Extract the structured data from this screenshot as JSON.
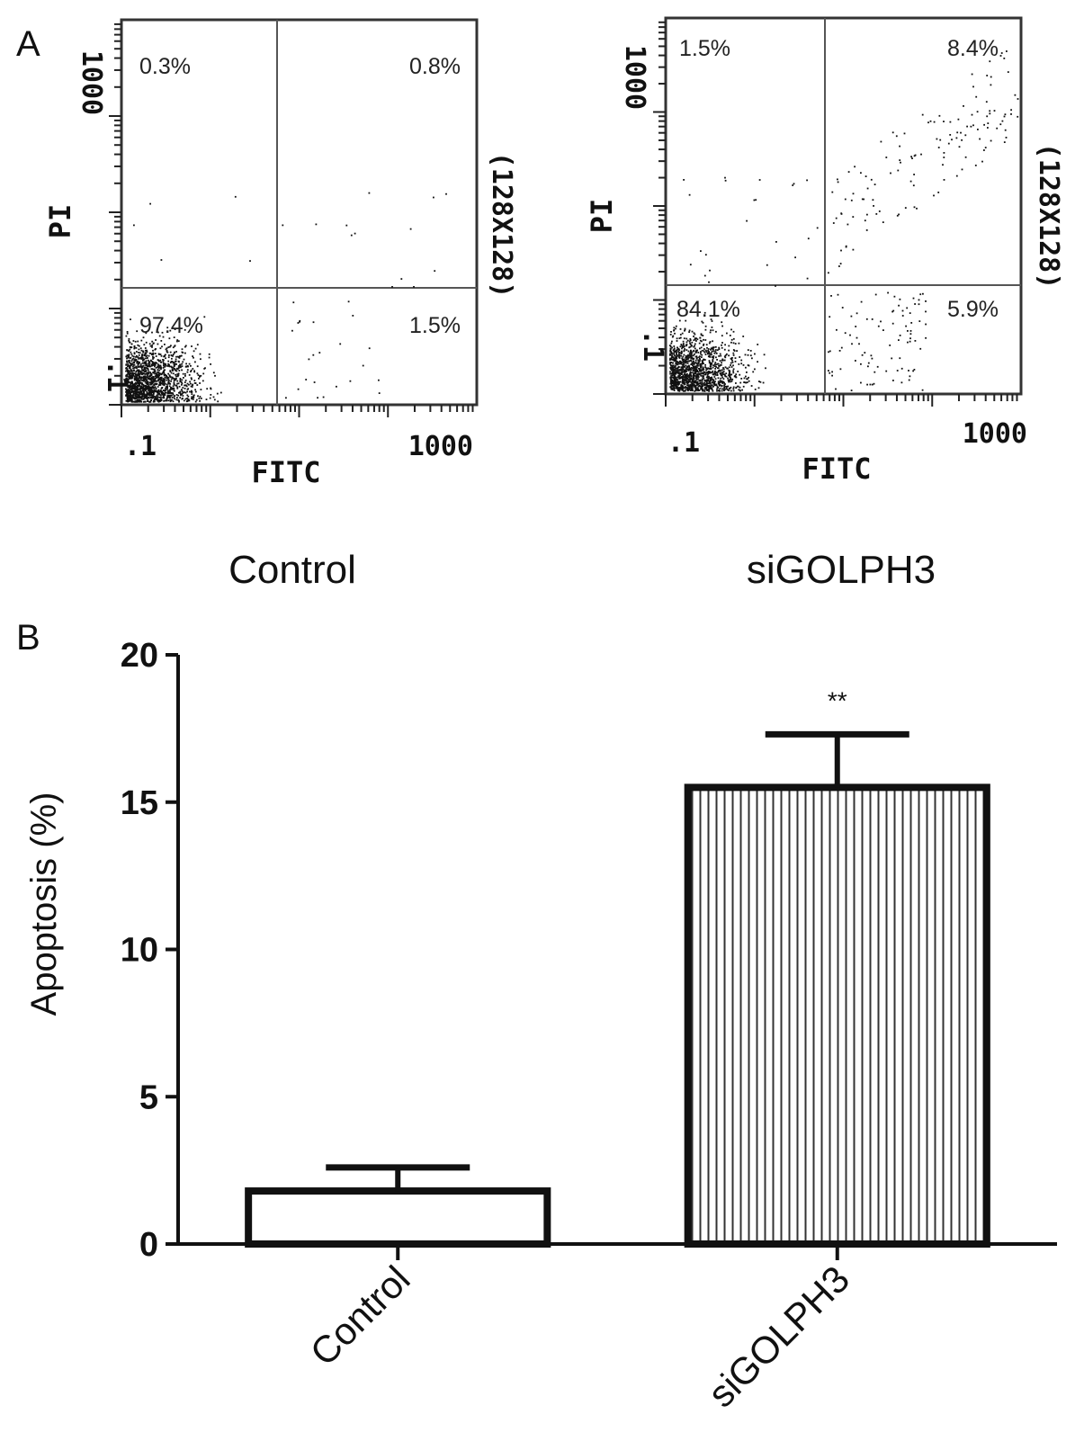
{
  "panel_labels": {
    "a": "A",
    "b": "B"
  },
  "flow_plots": [
    {
      "condition": "Control",
      "x_label": "FITC",
      "y_label": "PI",
      "resolution_label": "(128X128)",
      "x_ticks": [
        ".1",
        "1000"
      ],
      "y_ticks": [
        ".1",
        "1000"
      ],
      "quadrants": {
        "upper_left": "0.3%",
        "upper_right": "0.8%",
        "lower_left": "97.4%",
        "lower_right": "1.5%"
      }
    },
    {
      "condition": "siGOLPH3",
      "x_label": "FITC",
      "y_label": "PI",
      "resolution_label": "(128X128)",
      "x_ticks": [
        ".1",
        "1000"
      ],
      "y_ticks": [
        ".1",
        "1000"
      ],
      "quadrants": {
        "upper_left": "1.5%",
        "upper_right": "8.4%",
        "lower_left": "84.1%",
        "lower_right": "5.9%"
      }
    }
  ],
  "chart_data": [
    {
      "type": "scatter",
      "panel": "A",
      "title": "Control",
      "xlabel": "FITC",
      "ylabel": "PI",
      "scale": "log",
      "quadrant_percent": {
        "upper_left": 0.3,
        "upper_right": 0.8,
        "lower_left": 97.4,
        "lower_right": 1.5
      }
    },
    {
      "type": "scatter",
      "panel": "A",
      "title": "siGOLPH3",
      "xlabel": "FITC",
      "ylabel": "PI",
      "scale": "log",
      "quadrant_percent": {
        "upper_left": 1.5,
        "upper_right": 8.4,
        "lower_left": 84.1,
        "lower_right": 5.9
      }
    },
    {
      "type": "bar",
      "panel": "B",
      "categories": [
        "Control",
        "siGOLPH3"
      ],
      "values": [
        1.8,
        15.5
      ],
      "errors": [
        0.8,
        1.8
      ],
      "ylabel": "Apoptosis (%)",
      "xlabel": "",
      "ylim": [
        0,
        20
      ],
      "yticks": [
        "0",
        "5",
        "10",
        "15",
        "20"
      ],
      "significance": [
        "",
        "**"
      ],
      "fills": [
        "#ffffff",
        "striped"
      ]
    }
  ]
}
